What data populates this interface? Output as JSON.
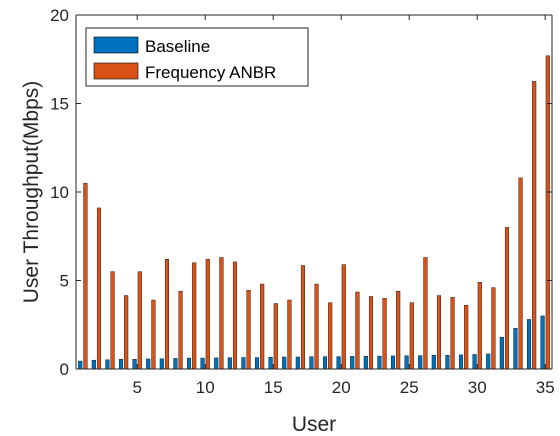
{
  "chart_data": {
    "type": "bar",
    "xlabel": "User",
    "ylabel": "User Throughput(Mbps)",
    "ylim": [
      0,
      20
    ],
    "xlim": [
      0.5,
      35.5
    ],
    "yticks": [
      0,
      5,
      10,
      15,
      20
    ],
    "xticks": [
      5,
      10,
      15,
      20,
      25,
      30,
      35
    ],
    "grid": false,
    "legend_position": "top-left",
    "x": [
      1,
      2,
      3,
      4,
      5,
      6,
      7,
      8,
      9,
      10,
      11,
      12,
      13,
      14,
      15,
      16,
      17,
      18,
      19,
      20,
      21,
      22,
      23,
      24,
      25,
      26,
      27,
      28,
      29,
      30,
      31,
      32,
      33,
      34,
      35
    ],
    "series": [
      {
        "name": "Baseline",
        "color": "#0072BD",
        "values": [
          0.45,
          0.5,
          0.52,
          0.55,
          0.55,
          0.57,
          0.58,
          0.6,
          0.62,
          0.62,
          0.63,
          0.64,
          0.65,
          0.65,
          0.66,
          0.68,
          0.68,
          0.7,
          0.7,
          0.7,
          0.72,
          0.72,
          0.73,
          0.74,
          0.75,
          0.76,
          0.78,
          0.78,
          0.8,
          0.82,
          0.85,
          1.8,
          2.3,
          2.8,
          3.0
        ]
      },
      {
        "name": "Frequency ANBR",
        "color": "#D95319",
        "values": [
          10.5,
          9.1,
          5.5,
          4.15,
          5.5,
          3.9,
          6.2,
          4.4,
          6.0,
          6.2,
          6.3,
          6.05,
          4.45,
          4.8,
          3.7,
          3.9,
          5.85,
          4.8,
          3.75,
          5.9,
          4.35,
          4.1,
          4.0,
          4.4,
          3.75,
          6.3,
          4.15,
          4.05,
          3.6,
          4.9,
          4.6,
          8.0,
          10.8,
          16.25,
          17.7
        ]
      }
    ]
  }
}
